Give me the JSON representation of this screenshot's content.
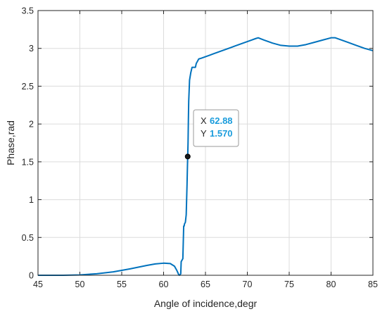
{
  "chart_data": {
    "type": "line",
    "xlabel": "Angle of incidence,degr",
    "ylabel": "Phase,rad",
    "xlim": [
      45,
      85
    ],
    "ylim": [
      0,
      3.5
    ],
    "xticks": [
      "45",
      "50",
      "55",
      "60",
      "65",
      "70",
      "75",
      "80",
      "85"
    ],
    "yticks": [
      "0",
      "0.5",
      "1",
      "1.5",
      "2",
      "2.5",
      "3",
      "3.5"
    ],
    "grid": true,
    "line_color": "#0072bd",
    "series": [
      {
        "x": [
          45,
          48,
          50,
          52,
          54,
          56,
          58,
          59,
          60,
          60.8,
          61.3,
          61.6,
          61.8,
          61.9,
          62.05,
          62.1,
          62.2,
          62.3,
          62.4,
          62.45,
          62.5,
          62.6,
          62.7,
          62.75,
          62.8,
          62.85,
          62.88,
          62.92,
          62.96,
          63.0,
          63.1,
          63.25,
          63.4,
          63.5,
          63.8,
          63.9,
          64.1,
          64.2,
          64.5,
          65,
          65.5,
          66,
          66.5,
          67,
          67.5,
          68,
          68.5,
          69,
          69.5,
          70,
          70.5,
          71,
          71.3,
          72,
          73,
          74,
          75,
          76,
          77,
          78,
          79,
          80,
          80.5,
          81,
          82,
          83,
          84,
          85
        ],
        "y": [
          0,
          0,
          0.005,
          0.02,
          0.045,
          0.085,
          0.13,
          0.15,
          0.16,
          0.155,
          0.12,
          0.06,
          0.01,
          0.0,
          0.02,
          0.18,
          0.2,
          0.22,
          0.65,
          0.65,
          0.68,
          0.7,
          0.8,
          1.0,
          1.2,
          1.45,
          1.57,
          1.75,
          2.05,
          2.3,
          2.58,
          2.68,
          2.75,
          2.75,
          2.75,
          2.8,
          2.84,
          2.86,
          2.87,
          2.89,
          2.91,
          2.93,
          2.95,
          2.97,
          2.99,
          3.01,
          3.03,
          3.05,
          3.07,
          3.09,
          3.11,
          3.13,
          3.14,
          3.11,
          3.07,
          3.04,
          3.03,
          3.03,
          3.05,
          3.08,
          3.11,
          3.14,
          3.14,
          3.12,
          3.08,
          3.04,
          3.0,
          2.97
        ]
      }
    ],
    "datatip": {
      "x_key": "X",
      "x_value": "62.88",
      "y_key": "Y",
      "y_value": "1.570",
      "x": 62.88,
      "y": 1.57
    }
  }
}
